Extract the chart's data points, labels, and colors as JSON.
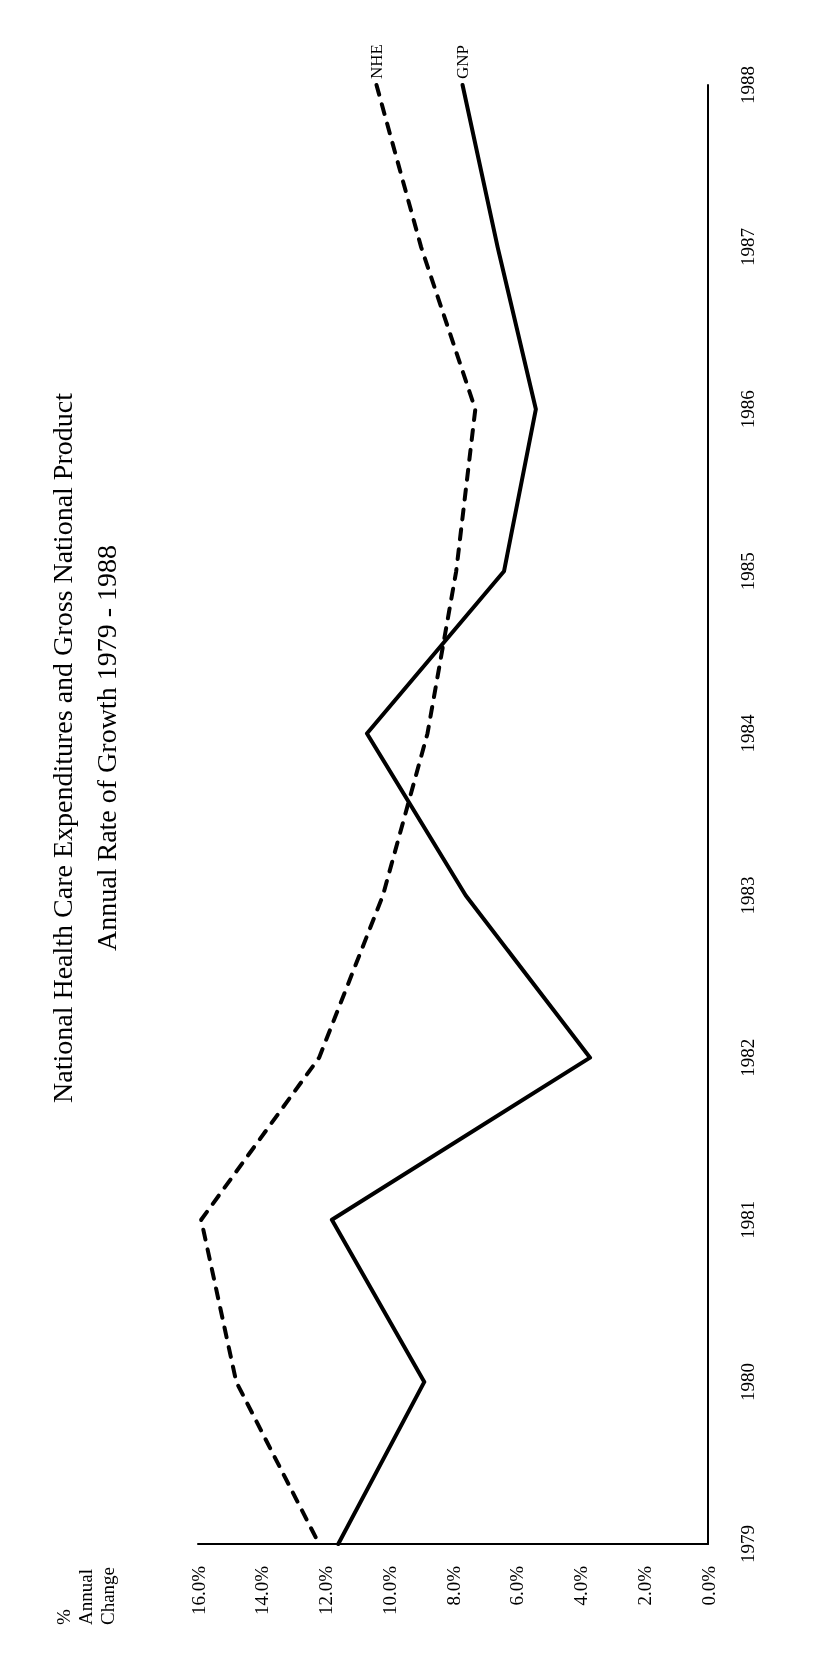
{
  "chart_data": {
    "type": "line",
    "orientation": "horizontal",
    "title": "National Health Care Expenditures and Gross National Product",
    "subtitle": "Annual Rate of Growth 1979 - 1988",
    "ylabel": "% Annual Change",
    "categories": [
      "1988",
      "1987",
      "1986",
      "1985",
      "1984",
      "1983",
      "1982",
      "1981",
      "1980",
      "1979"
    ],
    "series": [
      {
        "name": "NHE",
        "color": "#000000",
        "line_style": "dashed",
        "values": [
          10.4,
          9.0,
          7.3,
          7.9,
          8.8,
          10.2,
          12.2,
          15.9,
          14.8,
          12.2
        ]
      },
      {
        "name": "GNP",
        "color": "#000000",
        "line_style": "solid",
        "values": [
          7.7,
          6.6,
          5.4,
          6.4,
          10.7,
          7.6,
          3.7,
          11.8,
          8.9,
          11.6
        ]
      }
    ],
    "xlim": [
      16,
      0
    ],
    "xticks": [
      {
        "value": 16,
        "label": "16.0%"
      },
      {
        "value": 14,
        "label": "14.0%"
      },
      {
        "value": 12,
        "label": "12.0%"
      },
      {
        "value": 10,
        "label": "10.0%"
      },
      {
        "value": 8,
        "label": "8.0%"
      },
      {
        "value": 6,
        "label": "6.0%"
      },
      {
        "value": 4,
        "label": "4.0%"
      },
      {
        "value": 2,
        "label": "2.0%"
      },
      {
        "value": 0,
        "label": "0.0%"
      }
    ],
    "grid": false,
    "legend": false,
    "marker": "none"
  }
}
